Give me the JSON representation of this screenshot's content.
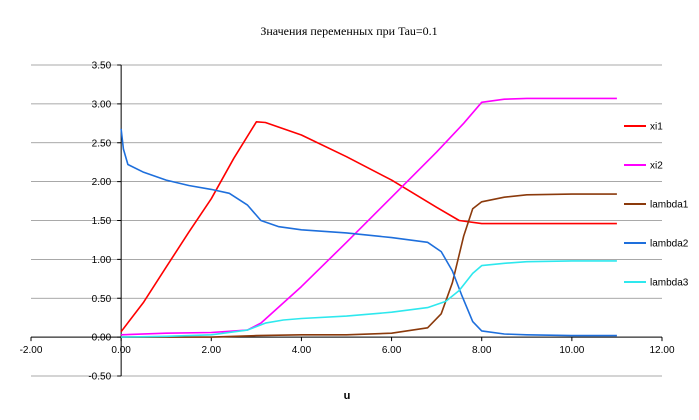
{
  "chart_data": {
    "type": "line",
    "title": "Значения переменных при Tau=0.1",
    "xlabel": "u",
    "ylabel": "",
    "xlim": [
      -2,
      12
    ],
    "ylim": [
      -0.5,
      3.5
    ],
    "xticks": [
      -2,
      0,
      2,
      4,
      6,
      8,
      10,
      12
    ],
    "yticks": [
      -0.5,
      0,
      0.5,
      1,
      1.5,
      2,
      2.5,
      3,
      3.5
    ],
    "xtick_labels": [
      "-2.00",
      "0.00",
      "2.00",
      "4.00",
      "6.00",
      "8.00",
      "10.00",
      "12.00"
    ],
    "ytick_labels": [
      "-0.50",
      "0.00",
      "0.50",
      "1.00",
      "1.50",
      "2.00",
      "2.50",
      "3.00",
      "3.50"
    ],
    "grid": "horizontal",
    "legend_position": "right",
    "series": [
      {
        "name": "xi1",
        "color": "#ff0000",
        "points": [
          [
            0,
            0.07
          ],
          [
            0.5,
            0.45
          ],
          [
            1,
            0.9
          ],
          [
            1.5,
            1.35
          ],
          [
            2,
            1.78
          ],
          [
            2.5,
            2.3
          ],
          [
            3,
            2.77
          ],
          [
            3.2,
            2.76
          ],
          [
            4,
            2.6
          ],
          [
            5,
            2.32
          ],
          [
            6,
            2.02
          ],
          [
            7,
            1.67
          ],
          [
            7.5,
            1.5
          ],
          [
            8,
            1.46
          ],
          [
            9,
            1.46
          ],
          [
            10,
            1.46
          ],
          [
            11,
            1.46
          ]
        ]
      },
      {
        "name": "xi2",
        "color": "#ff00ff",
        "points": [
          [
            0,
            0.03
          ],
          [
            1,
            0.05
          ],
          [
            2,
            0.06
          ],
          [
            2.8,
            0.09
          ],
          [
            3.1,
            0.18
          ],
          [
            4,
            0.65
          ],
          [
            5,
            1.22
          ],
          [
            6,
            1.8
          ],
          [
            7,
            2.38
          ],
          [
            7.6,
            2.75
          ],
          [
            8,
            3.02
          ],
          [
            8.5,
            3.06
          ],
          [
            9,
            3.07
          ],
          [
            10,
            3.07
          ],
          [
            11,
            3.07
          ]
        ]
      },
      {
        "name": "lambda1",
        "color": "#8b3a0c",
        "points": [
          [
            0,
            0
          ],
          [
            2,
            0
          ],
          [
            3,
            0.02
          ],
          [
            4,
            0.03
          ],
          [
            5,
            0.03
          ],
          [
            6,
            0.05
          ],
          [
            6.8,
            0.12
          ],
          [
            7.1,
            0.3
          ],
          [
            7.35,
            0.7
          ],
          [
            7.6,
            1.3
          ],
          [
            7.8,
            1.65
          ],
          [
            8,
            1.74
          ],
          [
            8.5,
            1.8
          ],
          [
            9,
            1.83
          ],
          [
            10,
            1.84
          ],
          [
            11,
            1.84
          ]
        ]
      },
      {
        "name": "lambda2",
        "color": "#1e6fdc",
        "points": [
          [
            0,
            2.68
          ],
          [
            0.05,
            2.42
          ],
          [
            0.15,
            2.22
          ],
          [
            0.5,
            2.12
          ],
          [
            1,
            2.02
          ],
          [
            1.5,
            1.95
          ],
          [
            2,
            1.9
          ],
          [
            2.4,
            1.85
          ],
          [
            2.8,
            1.7
          ],
          [
            3.1,
            1.5
          ],
          [
            3.5,
            1.42
          ],
          [
            4,
            1.38
          ],
          [
            5,
            1.34
          ],
          [
            6,
            1.28
          ],
          [
            6.8,
            1.22
          ],
          [
            7.1,
            1.1
          ],
          [
            7.35,
            0.85
          ],
          [
            7.55,
            0.55
          ],
          [
            7.8,
            0.2
          ],
          [
            8,
            0.08
          ],
          [
            8.5,
            0.04
          ],
          [
            9,
            0.03
          ],
          [
            10,
            0.02
          ],
          [
            11,
            0.02
          ]
        ]
      },
      {
        "name": "lambda3",
        "color": "#2ee8ee",
        "points": [
          [
            0,
            0
          ],
          [
            1,
            0.01
          ],
          [
            2,
            0.03
          ],
          [
            2.8,
            0.09
          ],
          [
            3.2,
            0.18
          ],
          [
            3.6,
            0.22
          ],
          [
            4,
            0.24
          ],
          [
            5,
            0.27
          ],
          [
            6,
            0.32
          ],
          [
            6.8,
            0.38
          ],
          [
            7.2,
            0.46
          ],
          [
            7.5,
            0.6
          ],
          [
            7.8,
            0.82
          ],
          [
            8,
            0.92
          ],
          [
            8.5,
            0.95
          ],
          [
            9,
            0.97
          ],
          [
            10,
            0.98
          ],
          [
            11,
            0.98
          ]
        ]
      }
    ]
  }
}
